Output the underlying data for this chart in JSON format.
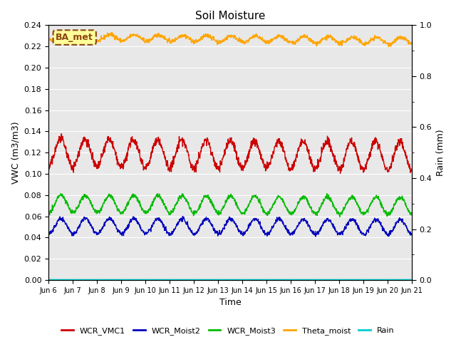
{
  "title": "Soil Moisture",
  "ylabel_left": "VWC (m3/m3)",
  "ylabel_right": "Rain (mm)",
  "xlabel": "Time",
  "ylim_left": [
    0.0,
    0.24
  ],
  "ylim_right": [
    0.0,
    1.0
  ],
  "yticks_left": [
    0.0,
    0.02,
    0.04,
    0.06,
    0.08,
    0.1,
    0.12,
    0.14,
    0.16,
    0.18,
    0.2,
    0.22,
    0.24
  ],
  "yticks_right_major": [
    0.0,
    0.2,
    0.4,
    0.6,
    0.8,
    1.0
  ],
  "xtick_labels": [
    "Jun 6",
    "Jun 7",
    "Jun 8",
    "Jun 9",
    "Jun 10",
    "Jun 11",
    "Jun 12",
    "Jun 13",
    "Jun 14",
    "Jun 15",
    "Jun 16",
    "Jun 17",
    "Jun 18",
    "Jun 19",
    "Jun 20",
    "Jun 21"
  ],
  "background_color": "#e8e8e8",
  "fig_color": "#ffffff",
  "annotation_text": "BA_met",
  "annotation_bg": "#ffff99",
  "annotation_border": "#8b4513",
  "legend_colors": {
    "WCR_VMC1": "#cc0000",
    "WCR_Moist2": "#0000bb",
    "WCR_Moist3": "#00bb00",
    "Theta_moist": "#ffa500",
    "Rain": "#00cccc"
  },
  "series_params": {
    "Theta_moist": {
      "base": 0.229,
      "amplitude": 0.003,
      "trend": -0.004,
      "phase": 0.3,
      "noise": 0.001
    },
    "WCR_VMC1": {
      "base": 0.12,
      "amplitude": 0.013,
      "trend": -0.003,
      "phase": 0.0,
      "noise": 0.002
    },
    "WCR_Moist3": {
      "base": 0.072,
      "amplitude": 0.008,
      "trend": -0.002,
      "phase": 0.1,
      "noise": 0.001
    },
    "WCR_Moist2": {
      "base": 0.051,
      "amplitude": 0.007,
      "trend": -0.001,
      "phase": 0.1,
      "noise": 0.001
    },
    "Rain": {
      "base": 0.0005,
      "amplitude": 0.0,
      "trend": 0.0,
      "phase": 0.0,
      "noise": 0.0
    }
  }
}
